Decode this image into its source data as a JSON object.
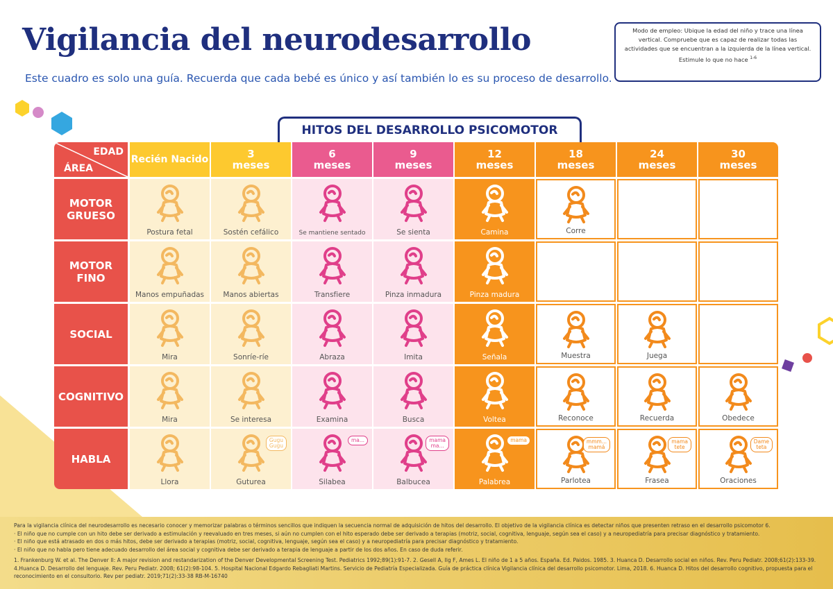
{
  "header": {
    "title": "Vigilancia del neurodesarrollo",
    "subtitle": "Este cuadro es solo una guía. Recuerda que cada bebé es único y así también lo es su proceso de desarrollo."
  },
  "instructions": {
    "text": "Modo de empleo: Ubique la edad del niño y trace una línea vertical. Compruebe que es capaz de realizar todas las actividades que se encuentran a la izquierda de la línea vertical. Estimule lo que no hace",
    "reference": "1-6"
  },
  "table": {
    "heading": "HITOS DEL DESARROLLO PSICOMOTOR",
    "corner": {
      "age": "EDAD",
      "area": "ÁREA"
    },
    "columns": [
      "Recién Nacido",
      "3\nmeses",
      "6\nmeses",
      "9\nmeses",
      "12\nmeses",
      "18\nmeses",
      "24\nmeses",
      "30\nmeses"
    ],
    "rows": [
      {
        "area": "MOTOR\nGRUESO",
        "cells": [
          "Postura fetal",
          "Sostén cefálico",
          "Se mantiene sentado",
          "Se sienta",
          "Camina",
          "Corre",
          null,
          null
        ]
      },
      {
        "area": "MOTOR\nFINO",
        "cells": [
          "Manos empuñadas",
          "Manos abiertas",
          "Transfiere",
          "Pinza inmadura",
          "Pinza madura",
          null,
          null,
          null
        ]
      },
      {
        "area": "SOCIAL",
        "cells": [
          "Mira",
          "Sonríe-ríe",
          "Abraza",
          "Imita",
          "Señala",
          "Muestra",
          "Juega",
          null
        ]
      },
      {
        "area": "COGNITIVO",
        "cells": [
          "Mira",
          "Se interesa",
          "Examina",
          "Busca",
          "Voltea",
          "Reconoce",
          "Recuerda",
          "Obedece"
        ]
      },
      {
        "area": "HABLA",
        "cells": [
          "Llora",
          "Guturea",
          "Silabea",
          "Balbucea",
          "Palabrea",
          "Parlotea",
          "Frasea",
          "Oraciones"
        ],
        "bubbles": [
          null,
          "Gugu\nGugu",
          "ma...",
          "mama\nma...",
          "mama",
          "mmm...\nmamá",
          "mama\ntete",
          "Dame\nteta"
        ]
      }
    ]
  },
  "footer": {
    "intro": "Para la vigilancia clínica del neurodesarrollo es necesario conocer y memorizar palabras o términos sencillos que indiquen la secuencia normal de adquisición de hitos del desarrollo. El objetivo de la vigilancia clínica es detectar niños que presenten retraso en el desarrollo psicomotor 6.",
    "notes": [
      "· El niño que no cumple con un hito debe ser derivado a estimulación y reevaluado en tres meses, si aún no cumplen con el hito esperado debe ser derivado a terapias (motriz, social, cognitiva, lenguaje, según sea el caso) y a neuropediatría para precisar diagnóstico y tratamiento.",
      "· El niño que está atrasado en dos o más hitos, debe ser derivado a terapias (motriz, social, cognitiva, lenguaje, según sea el caso) y a neuropediatría para precisar diagnóstico y tratamiento.",
      "· El niño que no habla pero tiene adecuado desarrollo del área social y cognitiva debe ser derivado a terapia de lenguaje a partir de los dos años. En caso de duda referir."
    ],
    "references": "1. Frankenburg W. et al. The Denver II: A major revision and restandarization of the Denver Developmental Screening Test. Pediatrics 1992;89(1):91-7. 2. Gesell A, Ilg F, Ames L. El niño de 1 a 5 años. España. Ed. Paidos. 1985. 3. Huanca D. Desarrollo social en niños. Rev. Peru Pediatr. 2008;61(2):133-39. 4.Huanca D. Desarrollo del lenguaje. Rev. Peru Pediatr. 2008; 61(2):98-104. 5. Hospital Nacional Edgardo Rebagliati Martins. Servicio de Pediatría Especializada. Guía de práctica clínica Vigilancia clínica del desarrollo psicomotor. Lima, 2018. 6. Huanca D. Hitos del desarrollo cognitivo, propuesta para el reconocimiento en el consultorio. Rev per pediatr. 2019;71(2):33-38   RB-M-16740"
  }
}
